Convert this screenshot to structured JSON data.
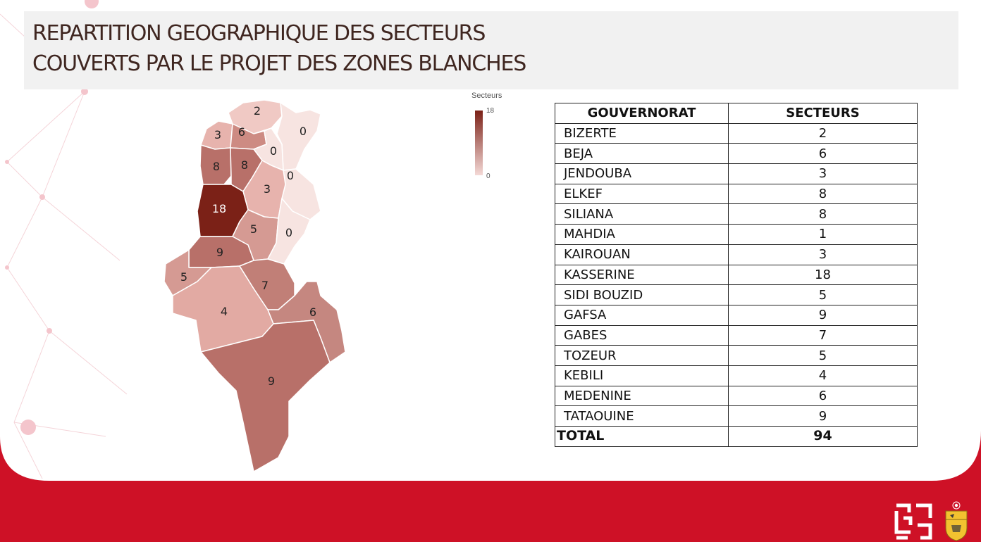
{
  "title": {
    "line1": "REPARTITION GEOGRAPHIQUE DES SECTEURS",
    "line2": "COUVERTS PAR LE PROJET DES ZONES BLANCHES"
  },
  "legend": {
    "title": "Secteurs",
    "max": "18",
    "min": "0",
    "color_max": "#7b2117",
    "color_min": "#f4d9d6"
  },
  "table": {
    "headers": {
      "gouvernorat": "GOUVERNORAT",
      "secteurs": "SECTEURS"
    },
    "rows": [
      {
        "gouvernorat": "BIZERTE",
        "secteurs": "2"
      },
      {
        "gouvernorat": "BEJA",
        "secteurs": "6"
      },
      {
        "gouvernorat": "JENDOUBA",
        "secteurs": "3"
      },
      {
        "gouvernorat": "ELKEF",
        "secteurs": "8"
      },
      {
        "gouvernorat": "SILIANA",
        "secteurs": "8"
      },
      {
        "gouvernorat": "MAHDIA",
        "secteurs": "1"
      },
      {
        "gouvernorat": "KAIROUAN",
        "secteurs": "3"
      },
      {
        "gouvernorat": "KASSERINE",
        "secteurs": "18"
      },
      {
        "gouvernorat": "SIDI BOUZID",
        "secteurs": "5"
      },
      {
        "gouvernorat": "GAFSA",
        "secteurs": "9"
      },
      {
        "gouvernorat": "GABES",
        "secteurs": "7"
      },
      {
        "gouvernorat": "TOZEUR",
        "secteurs": "5"
      },
      {
        "gouvernorat": "KEBILI",
        "secteurs": "4"
      },
      {
        "gouvernorat": "MEDENINE",
        "secteurs": "6"
      },
      {
        "gouvernorat": "TATAOUINE",
        "secteurs": "9"
      }
    ],
    "total": {
      "label": "TOTAL",
      "value": "94"
    }
  },
  "map_regions": [
    {
      "id": "bizerte",
      "value": "2"
    },
    {
      "id": "jendouba",
      "value": "3"
    },
    {
      "id": "beja",
      "value": "6"
    },
    {
      "id": "ariana-nabeul",
      "value": "0"
    },
    {
      "id": "manouba-tunis",
      "value": "0"
    },
    {
      "id": "zaghouan",
      "value": "0"
    },
    {
      "id": "kef",
      "value": "8"
    },
    {
      "id": "siliana",
      "value": "8"
    },
    {
      "id": "kairouan",
      "value": "3"
    },
    {
      "id": "kasserine",
      "value": "18"
    },
    {
      "id": "sidi-bouzid",
      "value": "5"
    },
    {
      "id": "sfax",
      "value": "0"
    },
    {
      "id": "gafsa",
      "value": "9"
    },
    {
      "id": "tozeur",
      "value": "5"
    },
    {
      "id": "kebili",
      "value": "4"
    },
    {
      "id": "gabes",
      "value": "7"
    },
    {
      "id": "medenine",
      "value": "6"
    },
    {
      "id": "tataouine",
      "value": "9"
    }
  ],
  "colors": {
    "footer_red": "#ce1126",
    "title_text": "#3f2620",
    "title_box": "#f1f1f1",
    "region_border": "#ffffff"
  },
  "icons": {
    "left_logo": "white-geometric-logo-icon",
    "right_logo": "tunisia-coat-of-arms-icon"
  }
}
